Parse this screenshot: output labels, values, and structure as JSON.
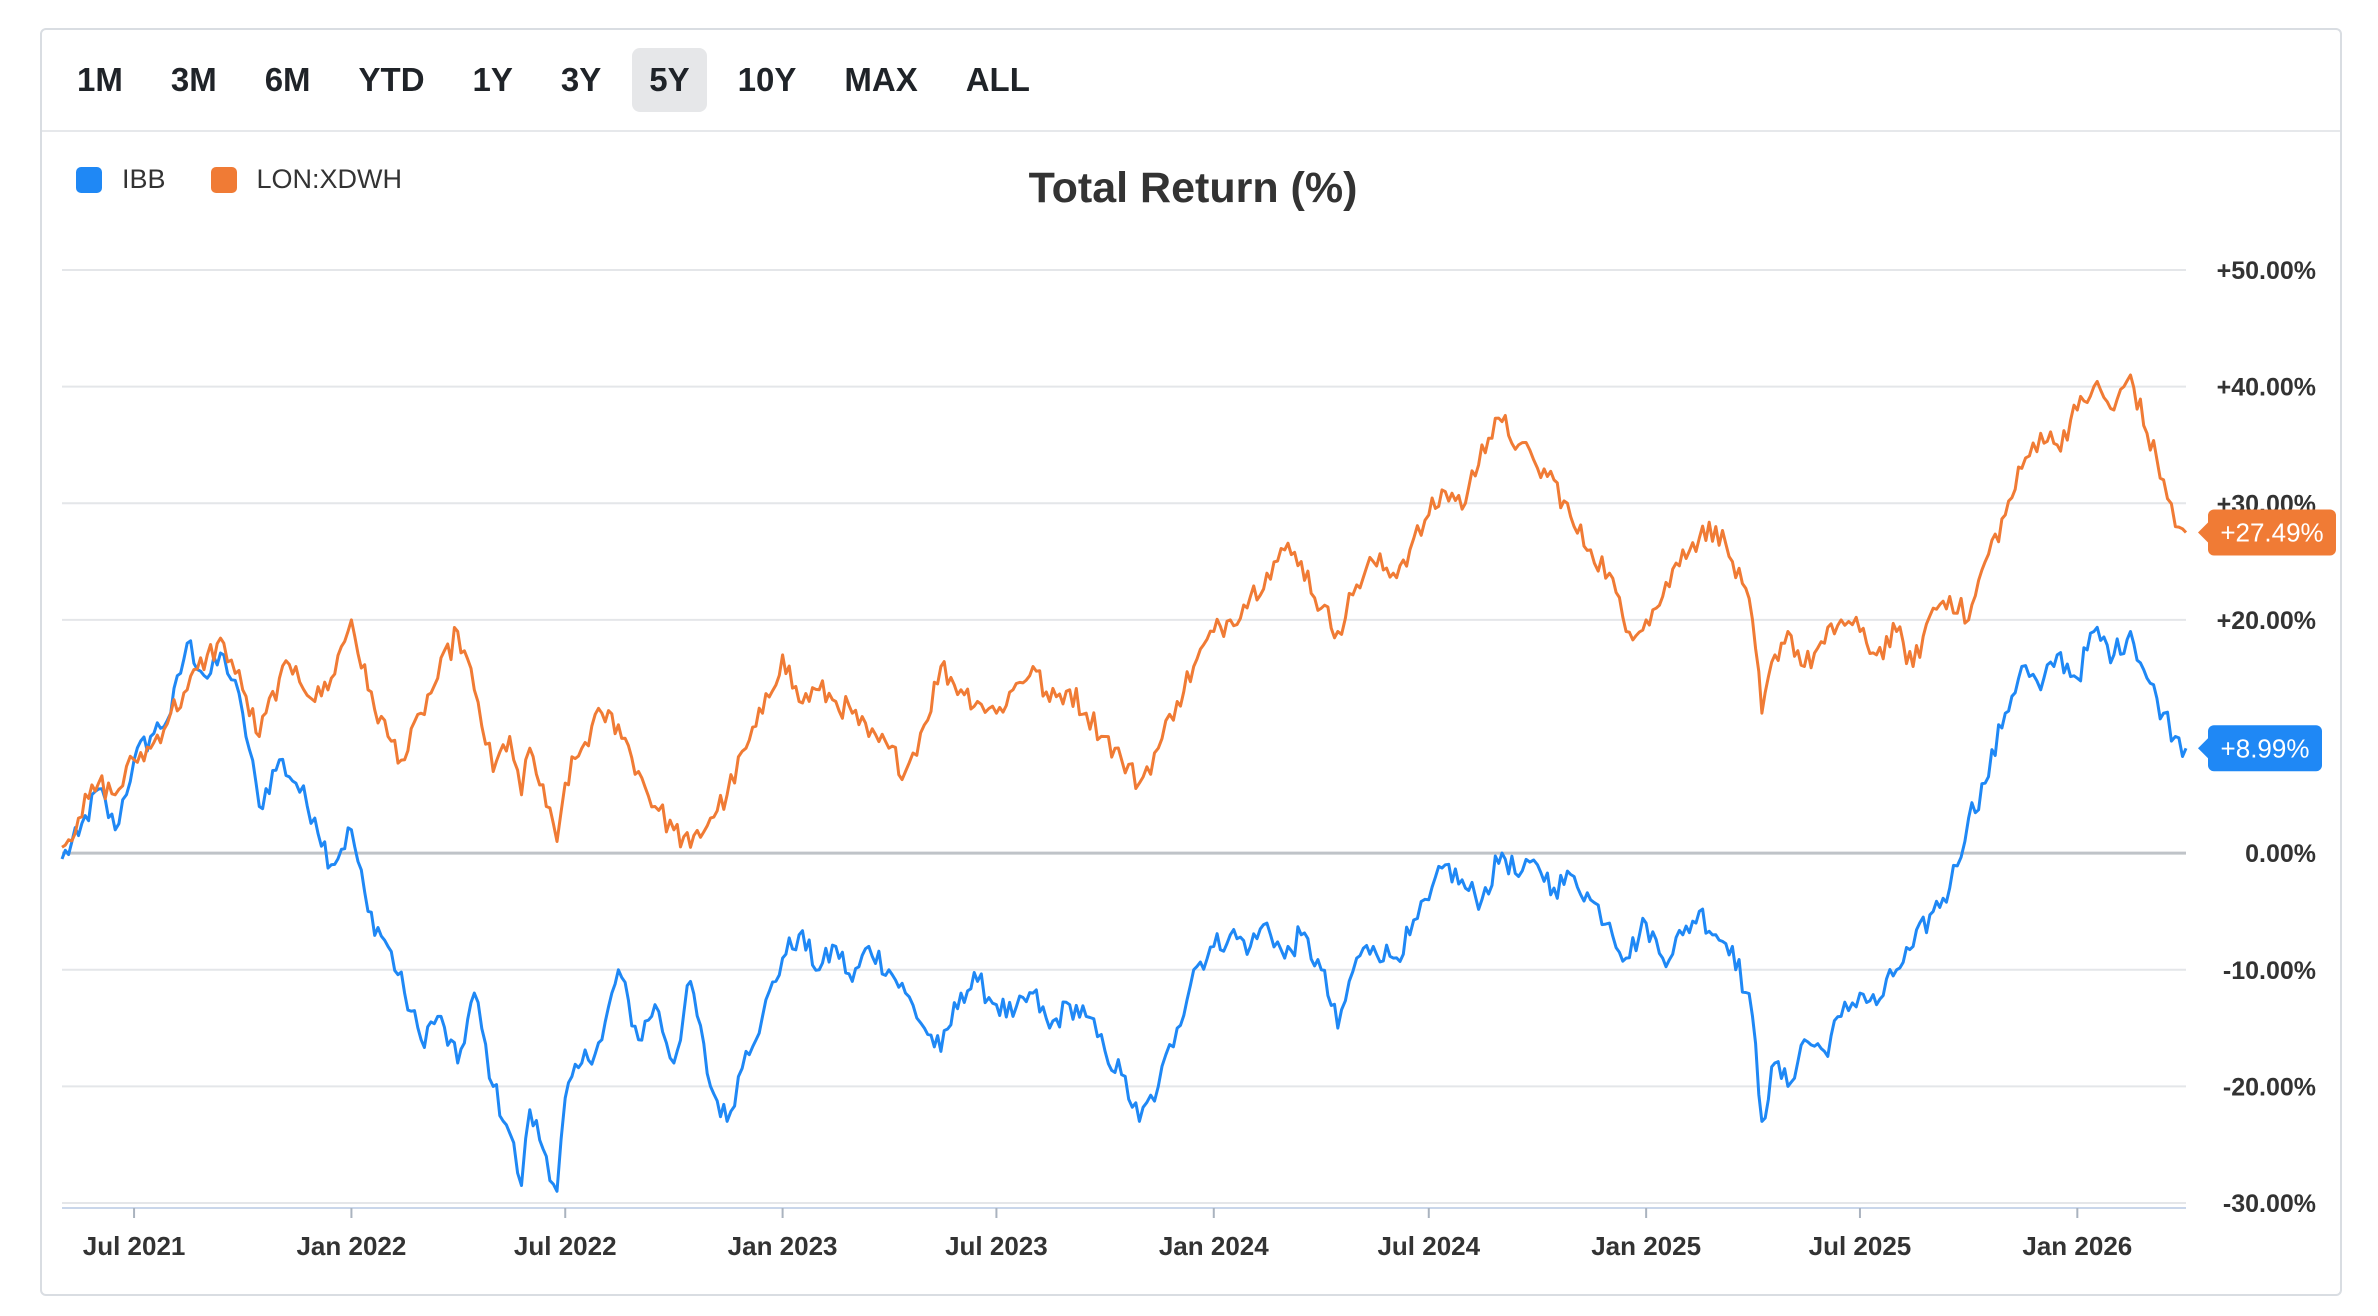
{
  "toolbar": {
    "ranges": [
      "1M",
      "3M",
      "6M",
      "YTD",
      "1Y",
      "3Y",
      "5Y",
      "10Y",
      "MAX",
      "ALL"
    ],
    "active": "5Y"
  },
  "legend": {
    "series1": {
      "label": "IBB",
      "color": "#1f88f5"
    },
    "series2": {
      "label": "LON:XDWH",
      "color": "#f07b35"
    }
  },
  "chart_data": {
    "type": "line",
    "title": "Total Return (%)",
    "xlabel": "",
    "ylabel": "",
    "ylim": [
      -30,
      50
    ],
    "x_range": [
      "2021-05-01",
      "2026-04-03"
    ],
    "y_ticks": [
      "+50.00%",
      "+40.00%",
      "+30.00%",
      "+20.00%",
      "0.00%",
      "-10.00%",
      "-20.00%",
      "-30.00%"
    ],
    "y_tick_values": [
      50,
      40,
      30,
      20,
      0,
      -10,
      -20,
      -30
    ],
    "x_ticks": [
      "Jul 2021",
      "Jan 2022",
      "Jul 2022",
      "Jan 2023",
      "Jul 2023",
      "Jan 2024",
      "Jul 2024",
      "Jan 2025",
      "Jul 2025",
      "Jan 2026"
    ],
    "x_tick_dates": [
      "2021-07-01",
      "2022-01-01",
      "2022-07-01",
      "2023-01-01",
      "2023-07-01",
      "2024-01-01",
      "2024-07-01",
      "2025-01-01",
      "2025-07-01",
      "2026-01-01"
    ],
    "series": [
      {
        "name": "IBB",
        "color": "#1f88f5",
        "last_label": "+8.99%",
        "last_value": 8.99,
        "points": [
          [
            "2021-05-01",
            -0.5
          ],
          [
            "2021-05-15",
            1.5
          ],
          [
            "2021-06-01",
            5.5
          ],
          [
            "2021-06-15",
            2.0
          ],
          [
            "2021-07-01",
            8.0
          ],
          [
            "2021-07-15",
            10.0
          ],
          [
            "2021-08-01",
            12.0
          ],
          [
            "2021-08-15",
            18.0
          ],
          [
            "2021-09-01",
            15.0
          ],
          [
            "2021-09-15",
            17.0
          ],
          [
            "2021-10-01",
            12.0
          ],
          [
            "2021-10-15",
            4.0
          ],
          [
            "2021-11-01",
            8.0
          ],
          [
            "2021-11-15",
            6.0
          ],
          [
            "2021-12-01",
            3.0
          ],
          [
            "2021-12-15",
            -1.0
          ],
          [
            "2022-01-01",
            2.0
          ],
          [
            "2022-01-15",
            -5.0
          ],
          [
            "2022-02-01",
            -8.0
          ],
          [
            "2022-02-15",
            -12.0
          ],
          [
            "2022-03-01",
            -16.0
          ],
          [
            "2022-03-15",
            -14.0
          ],
          [
            "2022-04-01",
            -18.0
          ],
          [
            "2022-04-15",
            -12.0
          ],
          [
            "2022-05-01",
            -20.0
          ],
          [
            "2022-05-15",
            -24.0
          ],
          [
            "2022-05-25",
            -28.5
          ],
          [
            "2022-06-01",
            -22.0
          ],
          [
            "2022-06-15",
            -26.0
          ],
          [
            "2022-06-24",
            -29.0
          ],
          [
            "2022-07-01",
            -21.0
          ],
          [
            "2022-07-15",
            -18.0
          ],
          [
            "2022-08-01",
            -16.0
          ],
          [
            "2022-08-15",
            -10.0
          ],
          [
            "2022-09-01",
            -16.0
          ],
          [
            "2022-09-15",
            -13.0
          ],
          [
            "2022-10-01",
            -18.0
          ],
          [
            "2022-10-15",
            -11.0
          ],
          [
            "2022-11-01",
            -20.0
          ],
          [
            "2022-11-15",
            -23.0
          ],
          [
            "2022-12-01",
            -17.0
          ],
          [
            "2022-12-15",
            -14.0
          ],
          [
            "2023-01-01",
            -9.0
          ],
          [
            "2023-01-15",
            -7.0
          ],
          [
            "2023-02-01",
            -10.0
          ],
          [
            "2023-02-15",
            -8.0
          ],
          [
            "2023-03-01",
            -11.0
          ],
          [
            "2023-03-15",
            -8.0
          ],
          [
            "2023-04-01",
            -10.0
          ],
          [
            "2023-04-15",
            -12.0
          ],
          [
            "2023-05-01",
            -15.0
          ],
          [
            "2023-05-15",
            -17.0
          ],
          [
            "2023-06-01",
            -12.0
          ],
          [
            "2023-06-15",
            -11.0
          ],
          [
            "2023-07-01",
            -13.0
          ],
          [
            "2023-07-15",
            -14.0
          ],
          [
            "2023-08-01",
            -12.0
          ],
          [
            "2023-08-15",
            -15.0
          ],
          [
            "2023-09-01",
            -13.0
          ],
          [
            "2023-09-15",
            -14.0
          ],
          [
            "2023-10-01",
            -17.0
          ],
          [
            "2023-10-15",
            -19.0
          ],
          [
            "2023-10-30",
            -23.0
          ],
          [
            "2023-11-15",
            -20.0
          ],
          [
            "2023-12-01",
            -15.0
          ],
          [
            "2023-12-15",
            -10.0
          ],
          [
            "2024-01-01",
            -8.0
          ],
          [
            "2024-01-15",
            -7.0
          ],
          [
            "2024-02-01",
            -8.0
          ],
          [
            "2024-02-15",
            -6.0
          ],
          [
            "2024-03-01",
            -9.0
          ],
          [
            "2024-03-15",
            -7.0
          ],
          [
            "2024-04-01",
            -10.0
          ],
          [
            "2024-04-15",
            -15.0
          ],
          [
            "2024-05-01",
            -9.0
          ],
          [
            "2024-05-15",
            -8.0
          ],
          [
            "2024-06-01",
            -9.0
          ],
          [
            "2024-06-15",
            -7.0
          ],
          [
            "2024-07-01",
            -4.0
          ],
          [
            "2024-07-15",
            -1.0
          ],
          [
            "2024-08-01",
            -3.0
          ],
          [
            "2024-08-15",
            -4.0
          ],
          [
            "2024-09-01",
            0.0
          ],
          [
            "2024-09-15",
            -2.0
          ],
          [
            "2024-10-01",
            -1.0
          ],
          [
            "2024-10-15",
            -3.0
          ],
          [
            "2024-11-01",
            -2.0
          ],
          [
            "2024-11-15",
            -4.0
          ],
          [
            "2024-12-01",
            -6.0
          ],
          [
            "2024-12-15",
            -9.0
          ],
          [
            "2025-01-01",
            -6.0
          ],
          [
            "2025-01-15",
            -9.0
          ],
          [
            "2025-02-01",
            -7.0
          ],
          [
            "2025-02-15",
            -5.0
          ],
          [
            "2025-03-01",
            -7.0
          ],
          [
            "2025-03-15",
            -8.0
          ],
          [
            "2025-04-01",
            -14.0
          ],
          [
            "2025-04-09",
            -23.0
          ],
          [
            "2025-04-20",
            -18.0
          ],
          [
            "2025-05-01",
            -20.0
          ],
          [
            "2025-05-15",
            -16.0
          ],
          [
            "2025-06-01",
            -17.0
          ],
          [
            "2025-06-15",
            -14.0
          ],
          [
            "2025-07-01",
            -12.0
          ],
          [
            "2025-07-15",
            -13.0
          ],
          [
            "2025-08-01",
            -10.0
          ],
          [
            "2025-08-15",
            -8.0
          ],
          [
            "2025-09-01",
            -5.0
          ],
          [
            "2025-09-15",
            -3.0
          ],
          [
            "2025-10-01",
            3.0
          ],
          [
            "2025-10-15",
            6.0
          ],
          [
            "2025-11-01",
            12.0
          ],
          [
            "2025-11-15",
            16.0
          ],
          [
            "2025-12-01",
            14.0
          ],
          [
            "2025-12-15",
            17.0
          ],
          [
            "2026-01-01",
            15.0
          ],
          [
            "2026-01-15",
            19.0
          ],
          [
            "2026-02-01",
            17.0
          ],
          [
            "2026-02-15",
            19.0
          ],
          [
            "2026-03-01",
            15.0
          ],
          [
            "2026-03-15",
            12.0
          ],
          [
            "2026-03-25",
            10.0
          ],
          [
            "2026-04-03",
            8.99
          ]
        ]
      },
      {
        "name": "LON:XDWH",
        "color": "#f07b35",
        "last_label": "+27.49%",
        "last_value": 27.49,
        "points": [
          [
            "2021-05-01",
            0.5
          ],
          [
            "2021-05-15",
            3.0
          ],
          [
            "2021-06-01",
            6.0
          ],
          [
            "2021-06-15",
            5.0
          ],
          [
            "2021-07-01",
            8.0
          ],
          [
            "2021-07-15",
            9.0
          ],
          [
            "2021-08-01",
            12.0
          ],
          [
            "2021-08-15",
            14.0
          ],
          [
            "2021-09-01",
            17.0
          ],
          [
            "2021-09-15",
            18.0
          ],
          [
            "2021-10-01",
            14.0
          ],
          [
            "2021-10-15",
            10.0
          ],
          [
            "2021-11-01",
            15.0
          ],
          [
            "2021-11-15",
            16.0
          ],
          [
            "2021-12-01",
            13.0
          ],
          [
            "2021-12-15",
            15.0
          ],
          [
            "2022-01-01",
            20.0
          ],
          [
            "2022-01-15",
            14.0
          ],
          [
            "2022-02-01",
            10.0
          ],
          [
            "2022-02-15",
            8.0
          ],
          [
            "2022-03-01",
            12.0
          ],
          [
            "2022-03-15",
            15.0
          ],
          [
            "2022-04-01",
            19.0
          ],
          [
            "2022-04-15",
            14.0
          ],
          [
            "2022-05-01",
            7.0
          ],
          [
            "2022-05-15",
            10.0
          ],
          [
            "2022-05-25",
            5.0
          ],
          [
            "2022-06-01",
            9.0
          ],
          [
            "2022-06-15",
            4.0
          ],
          [
            "2022-06-24",
            1.0
          ],
          [
            "2022-07-01",
            6.0
          ],
          [
            "2022-07-15",
            9.0
          ],
          [
            "2022-08-01",
            12.0
          ],
          [
            "2022-08-15",
            11.0
          ],
          [
            "2022-09-01",
            7.0
          ],
          [
            "2022-09-15",
            4.0
          ],
          [
            "2022-10-01",
            2.0
          ],
          [
            "2022-10-15",
            0.5
          ],
          [
            "2022-11-01",
            3.0
          ],
          [
            "2022-11-15",
            5.0
          ],
          [
            "2022-12-01",
            9.0
          ],
          [
            "2022-12-15",
            12.0
          ],
          [
            "2023-01-01",
            17.0
          ],
          [
            "2023-01-15",
            13.0
          ],
          [
            "2023-02-01",
            14.0
          ],
          [
            "2023-02-15",
            13.0
          ],
          [
            "2023-03-01",
            12.0
          ],
          [
            "2023-03-15",
            10.0
          ],
          [
            "2023-04-01",
            9.0
          ],
          [
            "2023-04-15",
            7.0
          ],
          [
            "2023-05-01",
            11.0
          ],
          [
            "2023-05-15",
            16.0
          ],
          [
            "2023-06-01",
            14.0
          ],
          [
            "2023-06-15",
            13.0
          ],
          [
            "2023-07-01",
            12.0
          ],
          [
            "2023-07-15",
            14.0
          ],
          [
            "2023-08-01",
            16.0
          ],
          [
            "2023-08-15",
            13.0
          ],
          [
            "2023-09-01",
            14.0
          ],
          [
            "2023-09-15",
            12.0
          ],
          [
            "2023-10-01",
            10.0
          ],
          [
            "2023-10-15",
            8.0
          ],
          [
            "2023-10-30",
            6.0
          ],
          [
            "2023-11-15",
            9.0
          ],
          [
            "2023-12-01",
            13.0
          ],
          [
            "2023-12-15",
            16.0
          ],
          [
            "2024-01-01",
            19.0
          ],
          [
            "2024-01-15",
            20.0
          ],
          [
            "2024-02-01",
            22.0
          ],
          [
            "2024-02-15",
            24.0
          ],
          [
            "2024-03-01",
            26.0
          ],
          [
            "2024-03-15",
            25.0
          ],
          [
            "2024-04-01",
            21.0
          ],
          [
            "2024-04-15",
            19.0
          ],
          [
            "2024-05-01",
            23.0
          ],
          [
            "2024-05-15",
            25.0
          ],
          [
            "2024-06-01",
            24.0
          ],
          [
            "2024-06-15",
            26.0
          ],
          [
            "2024-07-01",
            29.0
          ],
          [
            "2024-07-15",
            31.0
          ],
          [
            "2024-08-01",
            30.0
          ],
          [
            "2024-08-15",
            35.0
          ],
          [
            "2024-09-01",
            37.0
          ],
          [
            "2024-09-15",
            35.0
          ],
          [
            "2024-10-01",
            33.0
          ],
          [
            "2024-10-15",
            32.0
          ],
          [
            "2024-11-01",
            28.0
          ],
          [
            "2024-11-15",
            26.0
          ],
          [
            "2024-12-01",
            24.0
          ],
          [
            "2024-12-15",
            19.0
          ],
          [
            "2025-01-01",
            20.0
          ],
          [
            "2025-01-15",
            22.0
          ],
          [
            "2025-02-01",
            26.0
          ],
          [
            "2025-02-15",
            27.0
          ],
          [
            "2025-03-01",
            28.0
          ],
          [
            "2025-03-15",
            25.0
          ],
          [
            "2025-04-01",
            20.0
          ],
          [
            "2025-04-09",
            12.0
          ],
          [
            "2025-04-20",
            17.0
          ],
          [
            "2025-05-01",
            19.0
          ],
          [
            "2025-05-15",
            16.0
          ],
          [
            "2025-06-01",
            18.0
          ],
          [
            "2025-06-15",
            20.0
          ],
          [
            "2025-07-01",
            19.0
          ],
          [
            "2025-07-15",
            17.0
          ],
          [
            "2025-08-01",
            19.0
          ],
          [
            "2025-08-15",
            16.0
          ],
          [
            "2025-09-01",
            21.0
          ],
          [
            "2025-09-15",
            22.0
          ],
          [
            "2025-10-01",
            20.0
          ],
          [
            "2025-10-15",
            25.0
          ],
          [
            "2025-11-01",
            29.0
          ],
          [
            "2025-11-15",
            33.0
          ],
          [
            "2025-12-01",
            36.0
          ],
          [
            "2025-12-15",
            35.0
          ],
          [
            "2026-01-01",
            38.0
          ],
          [
            "2026-01-15",
            40.0
          ],
          [
            "2026-02-01",
            38.0
          ],
          [
            "2026-02-15",
            41.0
          ],
          [
            "2026-03-01",
            36.0
          ],
          [
            "2026-03-15",
            32.0
          ],
          [
            "2026-03-25",
            28.0
          ],
          [
            "2026-04-03",
            27.49
          ]
        ]
      }
    ]
  }
}
